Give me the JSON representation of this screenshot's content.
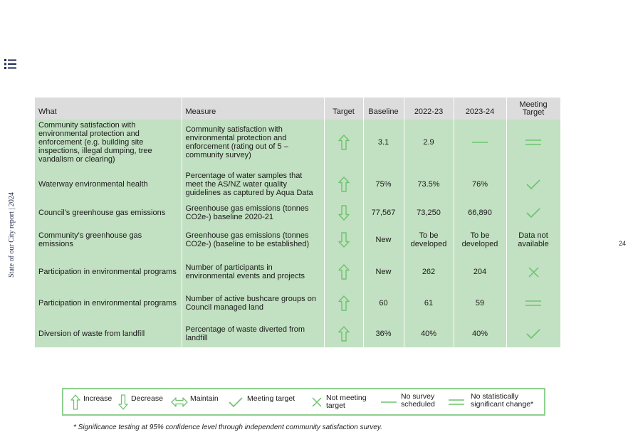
{
  "side_label": "State of our City report | 2024",
  "page_number": "24",
  "icons": {
    "menu": "list-icon",
    "increase": "arrow-up-icon",
    "decrease": "arrow-down-icon",
    "maintain": "arrow-left-right-icon",
    "meeting": "check-icon",
    "not_meeting": "cross-icon",
    "no_survey": "dash-icon",
    "no_change": "equals-icon"
  },
  "colors": {
    "table_fill": "#c2e0c2",
    "header_fill": "#dcdcdc",
    "symbol_green": "#6cc46c",
    "legend_border": "#8fcf8f"
  },
  "table": {
    "headers": {
      "what": "What",
      "measure": "Measure",
      "target": "Target",
      "baseline": "Baseline",
      "y2022": "2022-23",
      "y2023": "2023-24",
      "meeting": "Meeting Target"
    },
    "rows": [
      {
        "what": "Community satisfaction with environmental protection and enforcement (e.g. building site inspections, illegal dumping, tree vandalism or clearing)",
        "measure": "Community satisfaction with environmental protection and enforcement (rating out of 5 – community survey)",
        "target": "increase",
        "baseline": "3.1",
        "y2022": "2.9",
        "y2023": "",
        "y2023_symbol": "dash",
        "meeting": "",
        "meeting_symbol": "equals"
      },
      {
        "what": "Waterway environmental health",
        "measure": "Percentage of water samples that meet the AS/NZ water quality guidelines as captured by Aqua Data",
        "target": "increase",
        "baseline": "75%",
        "y2022": "73.5%",
        "y2023": "76%",
        "y2023_symbol": "",
        "meeting": "",
        "meeting_symbol": "check"
      },
      {
        "what": "Council's greenhouse gas emissions",
        "measure": "Greenhouse gas emissions (tonnes CO2e-) baseline 2020-21",
        "target": "decrease",
        "baseline": "77,567",
        "y2022": "73,250",
        "y2023": "66,890",
        "y2023_symbol": "",
        "meeting": "",
        "meeting_symbol": "check"
      },
      {
        "what": "Community's greenhouse gas emissions",
        "measure": "Greenhouse gas emissions (tonnes CO2e-) (baseline to be established)",
        "target": "decrease",
        "baseline": "New",
        "y2022": "To be developed",
        "y2023": "To be developed",
        "y2023_symbol": "",
        "meeting": "Data not available",
        "meeting_symbol": ""
      },
      {
        "what": "Participation in environmental programs",
        "measure": "Number of participants in environmental events and projects",
        "target": "increase",
        "baseline": "New",
        "y2022": "262",
        "y2023": "204",
        "y2023_symbol": "",
        "meeting": "",
        "meeting_symbol": "cross"
      },
      {
        "what": "Participation in environmental programs",
        "measure": "Number of active bushcare groups on Council managed land",
        "target": "increase",
        "baseline": "60",
        "y2022": "61",
        "y2023": "59",
        "y2023_symbol": "",
        "meeting": "",
        "meeting_symbol": "equals"
      },
      {
        "what": "Diversion of waste from landfill",
        "measure": "Percentage of waste diverted from landfill",
        "target": "increase",
        "baseline": "36%",
        "y2022": "40%",
        "y2023": "40%",
        "y2023_symbol": "",
        "meeting": "",
        "meeting_symbol": "check"
      }
    ]
  },
  "legend": {
    "increase": "Increase",
    "decrease": "Decrease",
    "maintain": "Maintain",
    "meeting": "Meeting target",
    "not_meeting": "Not meeting target",
    "no_survey": "No survey scheduled",
    "no_change": "No statistically significant change*"
  },
  "footnote": "* Significance testing at 95% confidence level through independent community satisfaction survey."
}
